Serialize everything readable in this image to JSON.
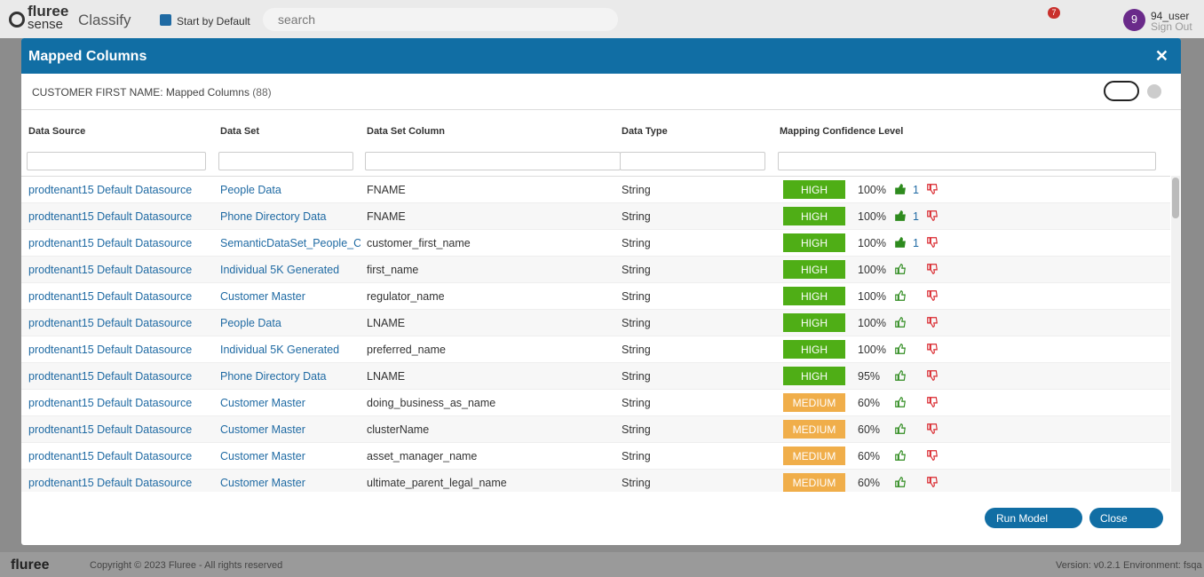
{
  "header": {
    "logo_top": "fluree",
    "logo_bottom": "sense",
    "app": "Classify",
    "checkbox_label": "Start by Default",
    "search_placeholder": "search",
    "notifications": "7",
    "avatar": "9",
    "user": "94_user",
    "sign_out": "Sign Out"
  },
  "modal": {
    "title": "Mapped Columns",
    "subtitle": "CUSTOMER FIRST NAME: Mapped Columns",
    "count": "(88)",
    "columns": [
      "Data Source",
      "Data Set",
      "Data Set Column",
      "Data Type",
      "Mapping Confidence Level"
    ],
    "rows": [
      {
        "source": "prodtenant15 Default Datasource",
        "dataset": "People Data",
        "column": "FNAME",
        "type": "String",
        "level": "HIGH",
        "confidence": "100%",
        "likes": "1"
      },
      {
        "source": "prodtenant15 Default Datasource",
        "dataset": "Phone Directory Data",
        "column": "FNAME",
        "type": "String",
        "level": "HIGH",
        "confidence": "100%",
        "likes": "1"
      },
      {
        "source": "prodtenant15 Default Datasource",
        "dataset": "SemanticDataSet_People_C",
        "column": "customer_first_name",
        "type": "String",
        "level": "HIGH",
        "confidence": "100%",
        "likes": "1"
      },
      {
        "source": "prodtenant15 Default Datasource",
        "dataset": "Individual 5K Generated",
        "column": "first_name",
        "type": "String",
        "level": "HIGH",
        "confidence": "100%"
      },
      {
        "source": "prodtenant15 Default Datasource",
        "dataset": "Customer Master",
        "column": "regulator_name",
        "type": "String",
        "level": "HIGH",
        "confidence": "100%"
      },
      {
        "source": "prodtenant15 Default Datasource",
        "dataset": "People Data",
        "column": "LNAME",
        "type": "String",
        "level": "HIGH",
        "confidence": "100%"
      },
      {
        "source": "prodtenant15 Default Datasource",
        "dataset": "Individual 5K Generated",
        "column": "preferred_name",
        "type": "String",
        "level": "HIGH",
        "confidence": "100%"
      },
      {
        "source": "prodtenant15 Default Datasource",
        "dataset": "Phone Directory Data",
        "column": "LNAME",
        "type": "String",
        "level": "HIGH",
        "confidence": "95%"
      },
      {
        "source": "prodtenant15 Default Datasource",
        "dataset": "Customer Master",
        "column": "doing_business_as_name",
        "type": "String",
        "level": "MEDIUM",
        "confidence": "60%"
      },
      {
        "source": "prodtenant15 Default Datasource",
        "dataset": "Customer Master",
        "column": "clusterName",
        "type": "String",
        "level": "MEDIUM",
        "confidence": "60%"
      },
      {
        "source": "prodtenant15 Default Datasource",
        "dataset": "Customer Master",
        "column": "asset_manager_name",
        "type": "String",
        "level": "MEDIUM",
        "confidence": "60%"
      },
      {
        "source": "prodtenant15 Default Datasource",
        "dataset": "Customer Master",
        "column": "ultimate_parent_legal_name",
        "type": "String",
        "level": "MEDIUM",
        "confidence": "60%"
      }
    ],
    "buttons": {
      "run": "Run Model",
      "close": "Close"
    }
  },
  "footer": {
    "logo": "fluree",
    "copyright": "Copyright © 2023 Fluree - All rights reserved",
    "version": "Version: v0.2.1",
    "environment": "Environment: fsqa"
  }
}
